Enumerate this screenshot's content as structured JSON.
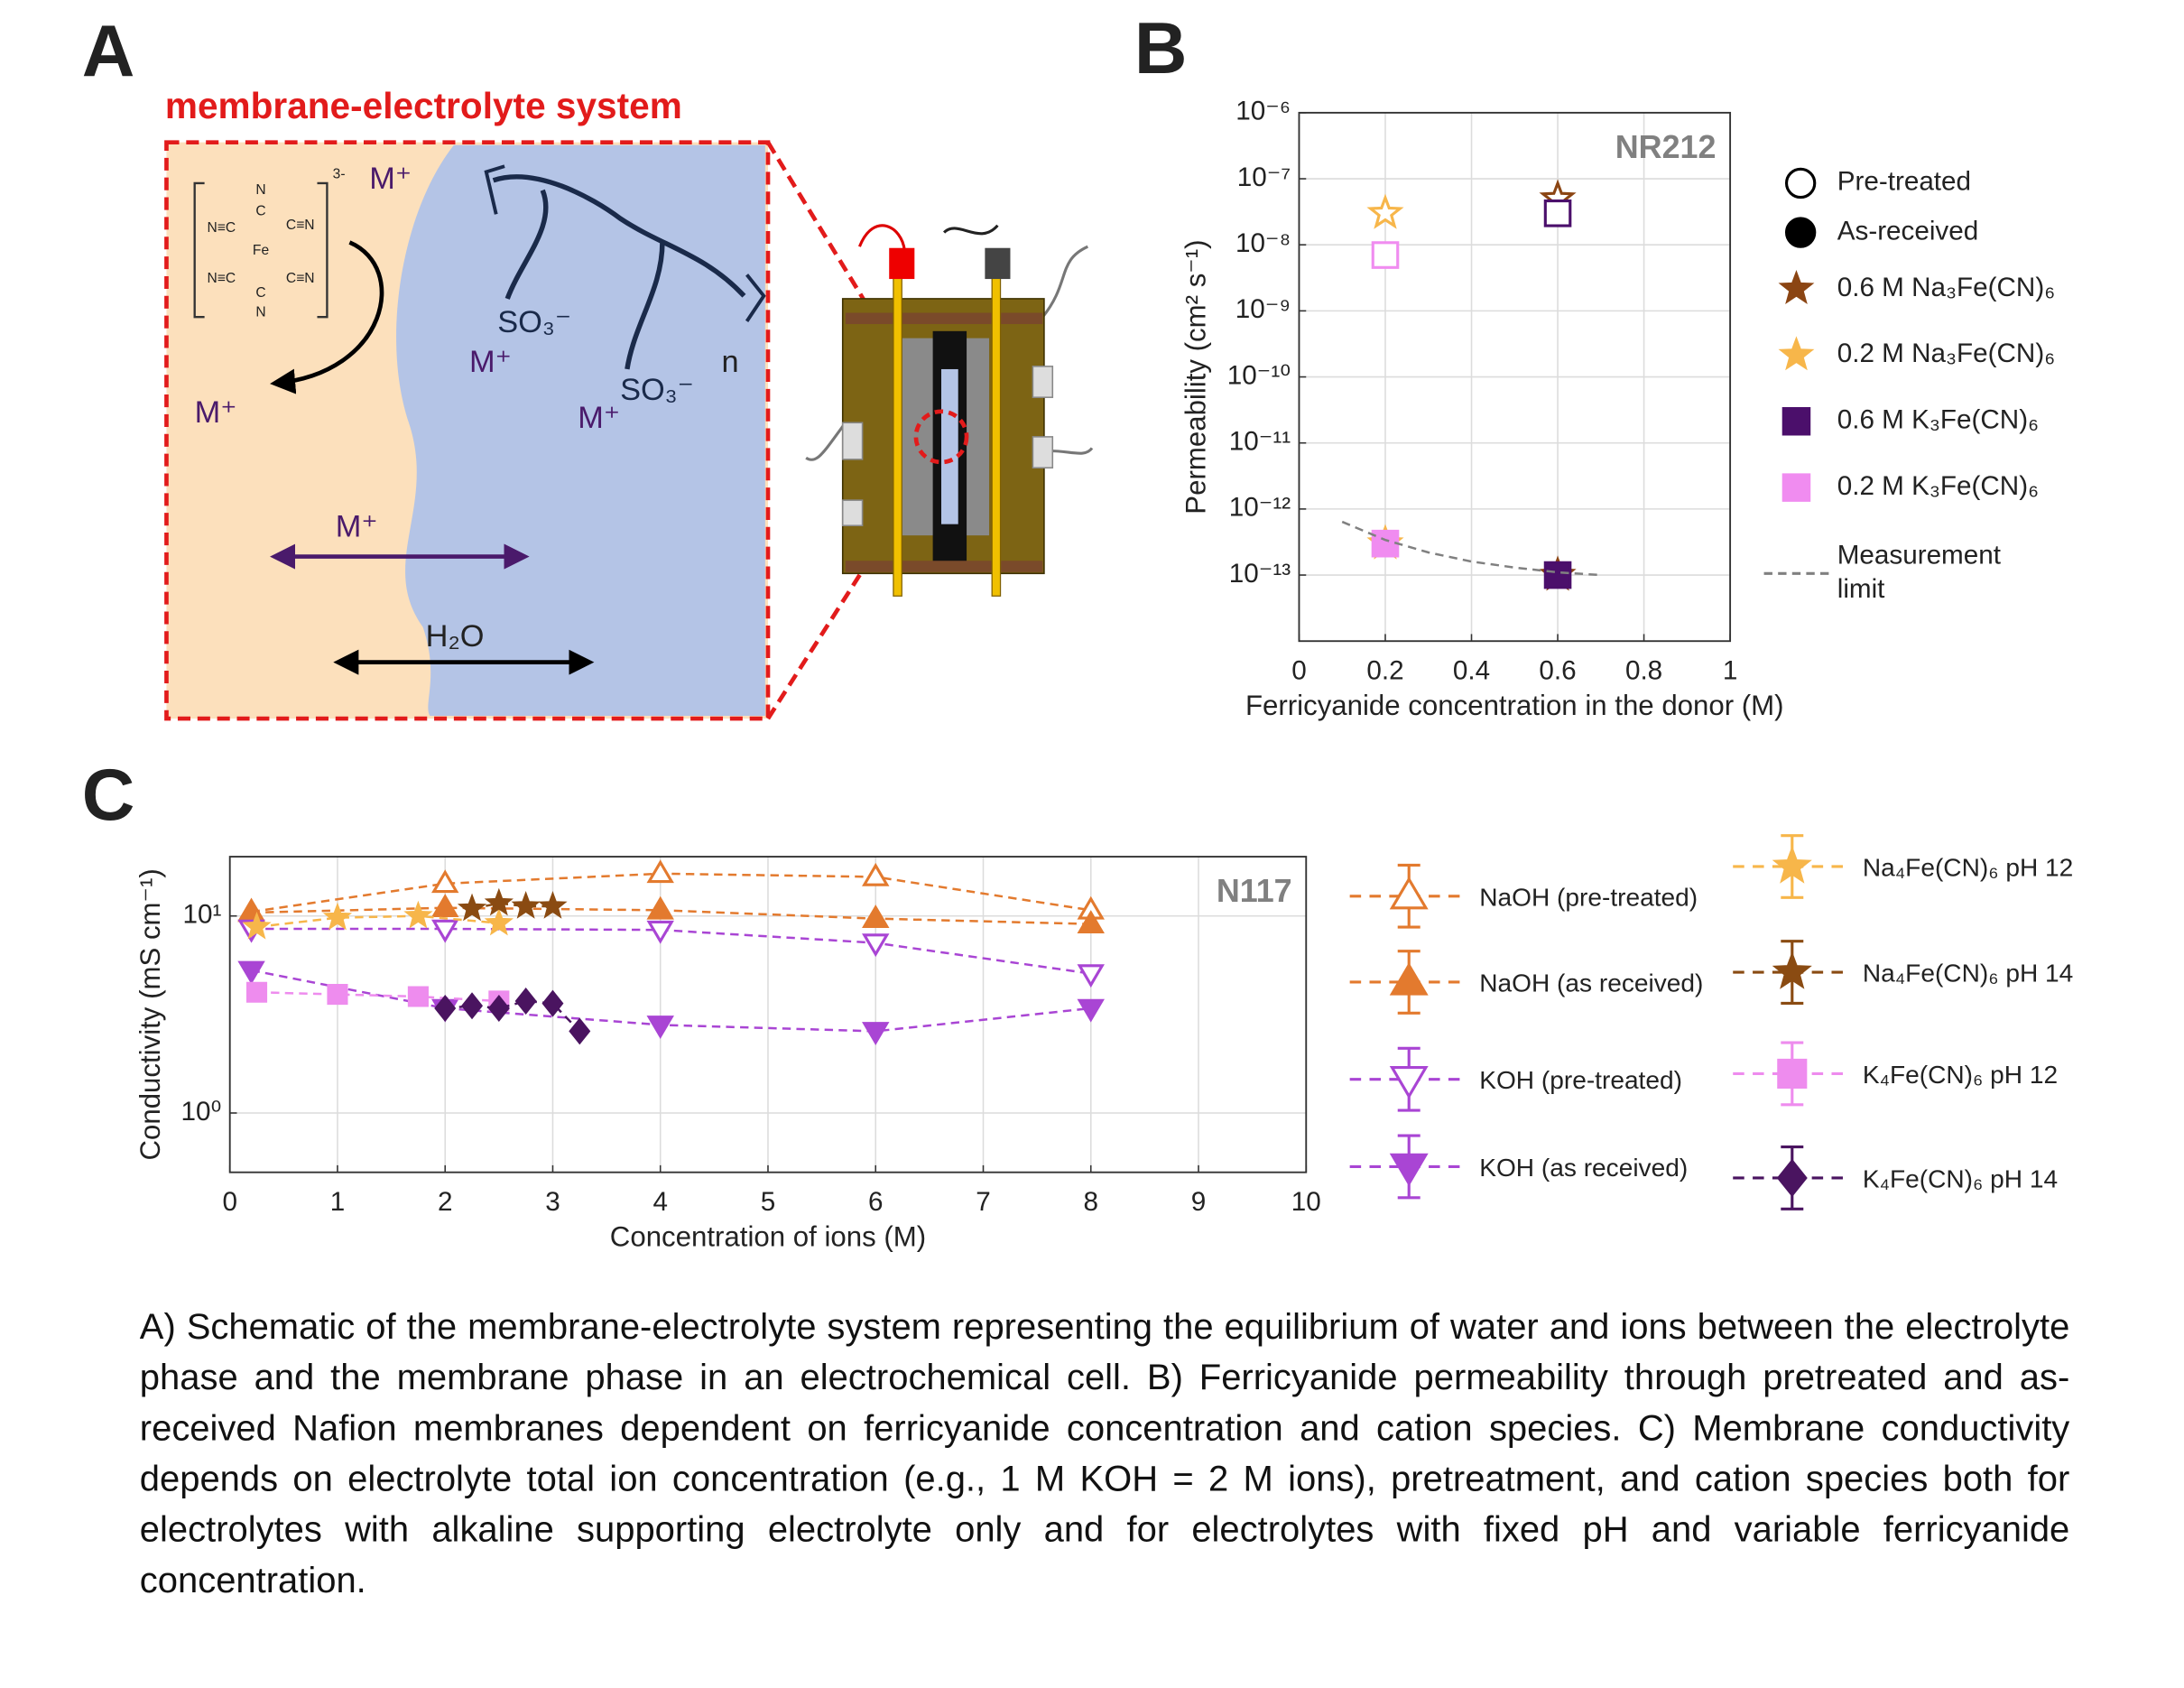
{
  "panels": [
    "A",
    "B",
    "C"
  ],
  "schematic": {
    "title": "membrane-electrolyte system",
    "labels": [
      "M⁺",
      "M⁺",
      "M⁺",
      "M⁺",
      "M⁺",
      "SO₃⁻",
      "SO₃⁻",
      "H₂O",
      "n",
      "3-"
    ],
    "complex": [
      "N",
      "C",
      "N≡C",
      "C≡N",
      "Fe",
      "N≡C",
      "C≡N",
      "C",
      "N"
    ]
  },
  "chart_data": [
    {
      "type": "scatter",
      "annotation": "NR212",
      "xlabel": "Ferricyanide concentration in the donor (M)",
      "ylabel": "Permeability (cm² s⁻¹)",
      "xlim": [
        0,
        1
      ],
      "xticks": [
        0,
        0.2,
        0.4,
        0.6,
        0.8,
        1
      ],
      "ylim": [
        1e-14,
        1e-06
      ],
      "log_y": true,
      "yticks": [
        {
          "value": 1e-13,
          "label": "10⁻¹³"
        },
        {
          "value": 1e-12,
          "label": "10⁻¹²"
        },
        {
          "value": 1e-11,
          "label": "10⁻¹¹"
        },
        {
          "value": 1e-10,
          "label": "10⁻¹⁰"
        },
        {
          "value": 1e-09,
          "label": "10⁻⁹"
        },
        {
          "value": 1e-08,
          "label": "10⁻⁸"
        },
        {
          "value": 1e-07,
          "label": "10⁻⁷"
        },
        {
          "value": 1e-06,
          "label": "10⁻⁶"
        }
      ],
      "grid": true,
      "treatments": [
        {
          "name": "Pre-treated",
          "filled": false
        },
        {
          "name": "As-received",
          "filled": true
        }
      ],
      "series": [
        {
          "name": "0.6 M Na₃Fe(CN)₆",
          "color": "#8b4513",
          "marker": "star",
          "x": [
            0.6,
            0.6
          ],
          "values": [
            5e-08,
            1e-13
          ]
        },
        {
          "name": "0.2 M Na₃Fe(CN)₆",
          "color": "#f7b64a",
          "marker": "star",
          "x": [
            0.2,
            0.2
          ],
          "values": [
            3e-08,
            3e-13
          ]
        },
        {
          "name": "0.6 M K₃Fe(CN)₆",
          "color": "#4b0f6b",
          "marker": "square",
          "x": [
            0.6,
            0.6
          ],
          "values": [
            3e-08,
            1e-13
          ]
        },
        {
          "name": "0.2 M K₃Fe(CN)₆",
          "color": "#f08cf0",
          "marker": "square",
          "x": [
            0.2,
            0.2
          ],
          "values": [
            7e-09,
            3e-13
          ]
        },
        {
          "name": "Measurement limit",
          "color": "#808080",
          "style": "dashed",
          "x": [
            0.1,
            0.2,
            0.3,
            0.4,
            0.5,
            0.6,
            0.7
          ],
          "values": [
            6.4e-13,
            3.4e-13,
            2.2e-13,
            1.6e-13,
            1.3e-13,
            1.1e-13,
            1e-13
          ]
        }
      ]
    },
    {
      "type": "scatter",
      "annotation": "N117",
      "xlabel": "Concentration of ions (M)",
      "ylabel": "Conductivity (mS cm⁻¹)",
      "xlim": [
        0,
        10
      ],
      "xticks": [
        0,
        1,
        2,
        3,
        4,
        5,
        6,
        7,
        8,
        9,
        10
      ],
      "ylim": [
        0.5,
        20
      ],
      "log_y": true,
      "yticks": [
        {
          "value": 1,
          "label": "10⁰"
        },
        {
          "value": 10,
          "label": "10¹"
        }
      ],
      "grid": true,
      "series": [
        {
          "name": "NaOH (pre-treated)",
          "color": "#e37a2e",
          "marker": "triangle-up",
          "filled": false,
          "style": "dashed",
          "x": [
            0.2,
            2,
            4,
            6,
            8
          ],
          "values": [
            10.5,
            14.6,
            16.4,
            15.8,
            10.7
          ]
        },
        {
          "name": "NaOH (as received)",
          "color": "#e37a2e",
          "marker": "triangle-up",
          "filled": true,
          "style": "dashed",
          "x": [
            0.2,
            2,
            4,
            6,
            8
          ],
          "values": [
            10.4,
            11.0,
            10.7,
            9.7,
            9.1
          ]
        },
        {
          "name": "KOH (pre-treated)",
          "color": "#a945d4",
          "marker": "triangle-down",
          "filled": false,
          "style": "dashed",
          "x": [
            0.2,
            2,
            4,
            6,
            8
          ],
          "values": [
            8.6,
            8.6,
            8.5,
            7.3,
            5.1
          ]
        },
        {
          "name": "KOH (as received)",
          "color": "#a945d4",
          "marker": "triangle-down",
          "filled": true,
          "style": "dashed",
          "x": [
            0.2,
            2,
            4,
            6,
            8
          ],
          "values": [
            5.3,
            3.4,
            2.8,
            2.6,
            3.4
          ]
        },
        {
          "name": "Na₄Fe(CN)₆ pH 12",
          "color": "#f7b64a",
          "marker": "star",
          "filled": true,
          "style": "dashed",
          "x": [
            0.25,
            1,
            1.75,
            2.5
          ],
          "values": [
            8.8,
            9.8,
            10,
            9.2
          ]
        },
        {
          "name": "Na₄Fe(CN)₆ pH 14",
          "color": "#8a4b12",
          "marker": "star",
          "filled": true,
          "style": "dashed",
          "x": [
            2.25,
            2.5,
            2.75,
            3
          ],
          "values": [
            10.9,
            11.6,
            11.2,
            11.2
          ]
        },
        {
          "name": "K₄Fe(CN)₆ pH 12",
          "color": "#ee8cee",
          "marker": "square",
          "filled": true,
          "style": "dashed",
          "x": [
            0.25,
            1,
            1.75,
            2.5
          ],
          "values": [
            4.1,
            4.0,
            3.9,
            3.7
          ]
        },
        {
          "name": "K₄Fe(CN)₆ pH 14",
          "color": "#4a1460",
          "marker": "diamond",
          "filled": true,
          "style": "dashed",
          "x": [
            2,
            2.25,
            2.5,
            2.75,
            3,
            3.25
          ],
          "values": [
            3.4,
            3.5,
            3.4,
            3.7,
            3.6,
            2.6
          ]
        }
      ]
    }
  ],
  "caption": "A) Schematic of the membrane-electrolyte system representing the equilibrium of water and ions between the electrolyte phase and the membrane phase in an electrochemical cell. B) Ferricyanide permeability through pretreated and as-received Nafion membranes dependent on ferricyanide concentration and cation species. C) Membrane conductivity depends on electrolyte total ion concentration (e.g., 1 M KOH = 2 M ions), pretreatment, and cation species both for electrolytes with alkaline supporting electrolyte only and for electrolytes with fixed pH and variable ferricyanide concentration."
}
